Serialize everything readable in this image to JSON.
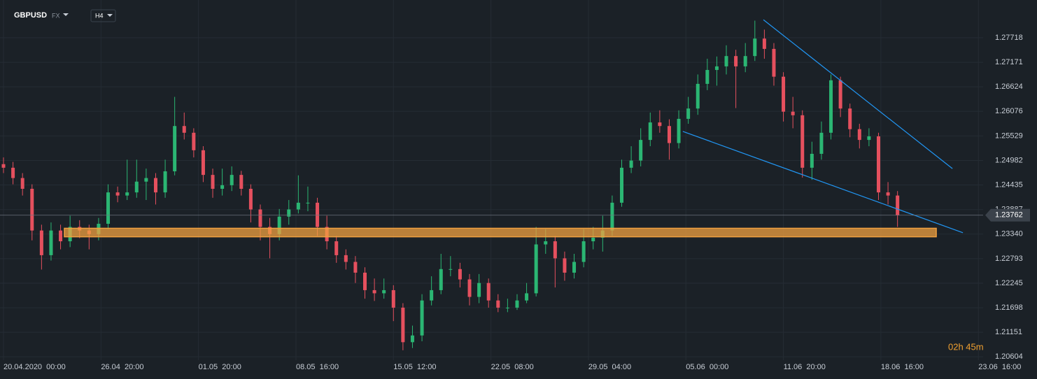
{
  "chart_data": {
    "type": "candlestick",
    "symbol": "GBPUSD",
    "market": "FX",
    "timeframe": "H4",
    "x": [
      0,
      4,
      8,
      12,
      16,
      20,
      24,
      28,
      32,
      36,
      40,
      44,
      48,
      52,
      56,
      60,
      64,
      68,
      72,
      76,
      80,
      84,
      88,
      92,
      96,
      100,
      104,
      108,
      112,
      116,
      120,
      124,
      128,
      132,
      136,
      140,
      144,
      148,
      152,
      156,
      160,
      164,
      168,
      172,
      176,
      180,
      184,
      188,
      192,
      196,
      200,
      204,
      208,
      212,
      216,
      220,
      224,
      228,
      232,
      236,
      240,
      244,
      248,
      252,
      256,
      260,
      264,
      268,
      272,
      276,
      280,
      284,
      288,
      292,
      296,
      300,
      304,
      308,
      312,
      316,
      320,
      324,
      328,
      332,
      336,
      340,
      344,
      348,
      352,
      356,
      360,
      364,
      368,
      372,
      376
    ],
    "open": [
      1.249,
      1.2482,
      1.2459,
      1.2435,
      1.2342,
      1.2287,
      1.2342,
      1.2318,
      1.235,
      1.2342,
      1.2334,
      1.2357,
      1.2427,
      1.242,
      1.2427,
      1.2451,
      1.2459,
      1.2427,
      1.2474,
      1.2575,
      1.256,
      1.2521,
      1.2466,
      1.2435,
      1.2443,
      1.2466,
      1.2435,
      1.2389,
      1.235,
      1.2334,
      1.2373,
      1.2389,
      1.2404,
      1.2404,
      1.235,
      1.2318,
      1.2287,
      1.2272,
      1.2248,
      1.2209,
      1.2202,
      1.2209,
      1.217,
      1.2093,
      1.2108,
      1.2186,
      1.2209,
      1.2256,
      1.2256,
      1.2233,
      1.2194,
      1.2225,
      1.2186,
      1.217,
      1.217,
      1.2186,
      1.2202,
      1.2311,
      1.2318,
      1.228,
      1.2248,
      1.2272,
      1.2318,
      1.2326,
      1.2342,
      1.2404,
      1.2482,
      1.2498,
      1.2544,
      1.2583,
      1.2575,
      1.2537,
      1.2591,
      1.2614,
      1.2669,
      1.27,
      1.2708,
      1.2731,
      1.2708,
      1.2731,
      1.277,
      1.2747,
      1.2685,
      1.2607,
      1.2599,
      1.2482,
      1.2513,
      1.256,
      1.2677,
      1.2614,
      1.2568,
      1.2544,
      1.2552,
      1.2427,
      1.242
    ],
    "high": [
      1.2505,
      1.2495,
      1.247,
      1.2445,
      1.2355,
      1.236,
      1.2355,
      1.2375,
      1.2365,
      1.2355,
      1.237,
      1.2445,
      1.244,
      1.25,
      1.25,
      1.248,
      1.247,
      1.25,
      1.264,
      1.2605,
      1.257,
      1.253,
      1.248,
      1.248,
      1.2485,
      1.2475,
      1.2445,
      1.24,
      1.237,
      1.239,
      1.241,
      1.2465,
      1.244,
      1.2415,
      1.2375,
      1.233,
      1.23,
      1.2285,
      1.226,
      1.2235,
      1.2235,
      1.222,
      1.218,
      1.213,
      1.22,
      1.224,
      1.229,
      1.2285,
      1.227,
      1.2245,
      1.2245,
      1.2235,
      1.22,
      1.219,
      1.22,
      1.2225,
      1.235,
      1.2345,
      1.233,
      1.2295,
      1.229,
      1.2345,
      1.235,
      1.2375,
      1.242,
      1.25,
      1.253,
      1.257,
      1.2605,
      1.261,
      1.259,
      1.261,
      1.264,
      1.269,
      1.2725,
      1.273,
      1.2755,
      1.2745,
      1.276,
      1.281,
      1.279,
      1.276,
      1.2695,
      1.264,
      1.261,
      1.254,
      1.2585,
      1.269,
      1.2685,
      1.2625,
      1.258,
      1.257,
      1.256,
      1.245,
      1.243
    ],
    "low": [
      1.247,
      1.2445,
      1.242,
      1.232,
      1.2255,
      1.2275,
      1.23,
      1.2305,
      1.2325,
      1.23,
      1.232,
      1.2345,
      1.2405,
      1.241,
      1.2415,
      1.241,
      1.24,
      1.2415,
      1.2465,
      1.2545,
      1.2505,
      1.245,
      1.2415,
      1.242,
      1.243,
      1.242,
      1.236,
      1.232,
      1.228,
      1.232,
      1.2355,
      1.238,
      1.2385,
      1.233,
      1.23,
      1.227,
      1.2255,
      1.2225,
      1.219,
      1.2185,
      1.219,
      1.214,
      1.2075,
      1.208,
      1.2095,
      1.2175,
      1.22,
      1.224,
      1.2215,
      1.2175,
      1.218,
      1.217,
      1.216,
      1.216,
      1.2165,
      1.218,
      1.2195,
      1.229,
      1.2215,
      1.223,
      1.2235,
      1.226,
      1.23,
      1.2295,
      1.233,
      1.2395,
      1.247,
      1.2485,
      1.253,
      1.256,
      1.25,
      1.2525,
      1.258,
      1.26,
      1.2655,
      1.2665,
      1.269,
      1.2615,
      1.2695,
      1.272,
      1.2725,
      1.2665,
      1.2585,
      1.257,
      1.246,
      1.2455,
      1.25,
      1.2545,
      1.2595,
      1.255,
      1.2525,
      1.253,
      1.241,
      1.24,
      1.235
    ],
    "close": [
      1.2482,
      1.2459,
      1.2435,
      1.2342,
      1.2287,
      1.2342,
      1.2318,
      1.235,
      1.2342,
      1.2334,
      1.2357,
      1.2427,
      1.242,
      1.2427,
      1.2451,
      1.2459,
      1.2427,
      1.2474,
      1.2575,
      1.256,
      1.2521,
      1.2466,
      1.2435,
      1.2443,
      1.2466,
      1.2435,
      1.2389,
      1.235,
      1.2334,
      1.2373,
      1.2389,
      1.2404,
      1.2404,
      1.235,
      1.2318,
      1.2287,
      1.2272,
      1.2248,
      1.2209,
      1.2202,
      1.2209,
      1.217,
      1.2093,
      1.2108,
      1.2186,
      1.2209,
      1.2256,
      1.2256,
      1.2233,
      1.2194,
      1.2225,
      1.2186,
      1.217,
      1.217,
      1.2186,
      1.2202,
      1.2311,
      1.2318,
      1.228,
      1.2248,
      1.2272,
      1.2318,
      1.2326,
      1.2342,
      1.2404,
      1.2482,
      1.2498,
      1.2544,
      1.2583,
      1.2575,
      1.2537,
      1.2591,
      1.2614,
      1.2669,
      1.27,
      1.2708,
      1.2731,
      1.2708,
      1.2731,
      1.277,
      1.2747,
      1.2685,
      1.2607,
      1.2599,
      1.2482,
      1.2513,
      1.256,
      1.2677,
      1.2614,
      1.2568,
      1.2544,
      1.2552,
      1.2427,
      1.242,
      1.23762
    ],
    "up_color": "#2bb673",
    "down_color": "#e5505e",
    "xlim": [
      0,
      412
    ],
    "xticks": [
      {
        "value": 0,
        "label": "20.04.2020  00:00"
      },
      {
        "value": 41,
        "label": "26.04  20:00"
      },
      {
        "value": 82,
        "label": "01.05  20:00"
      },
      {
        "value": 123,
        "label": "08.05  16:00"
      },
      {
        "value": 164,
        "label": "15.05  12:00"
      },
      {
        "value": 205,
        "label": "22.05  08:00"
      },
      {
        "value": 246,
        "label": "29.05  04:00"
      },
      {
        "value": 287,
        "label": "05.06  00:00"
      },
      {
        "value": 328,
        "label": "11.06  20:00"
      },
      {
        "value": 369,
        "label": "18.06  16:00"
      },
      {
        "value": 410,
        "label": "23.06  16:00"
      }
    ],
    "ylim": [
      1.2053,
      1.2856
    ],
    "yticks": [
      1.27718,
      1.27171,
      1.26624,
      1.26076,
      1.25529,
      1.24982,
      1.24435,
      1.23887,
      {
        "value": 1.2334,
        "label": "1.23340"
      },
      1.22793,
      1.22245,
      1.21698,
      1.21151,
      1.20604
    ],
    "grid": true,
    "last_price": 1.23762,
    "zone": {
      "x": [
        25.6,
        392.3
      ],
      "y": [
        1.2328,
        1.2347
      ],
      "color": "#f0a040"
    },
    "trendlines": [
      {
        "x": [
          319.6,
          399.1
        ],
        "y": [
          1.2812,
          1.248
        ],
        "color": "#2196f3"
      },
      {
        "x": [
          285.7,
          403.5
        ],
        "y": [
          1.2563,
          1.2337
        ],
        "color": "#2196f3"
      }
    ],
    "countdown": "02h 45m"
  }
}
